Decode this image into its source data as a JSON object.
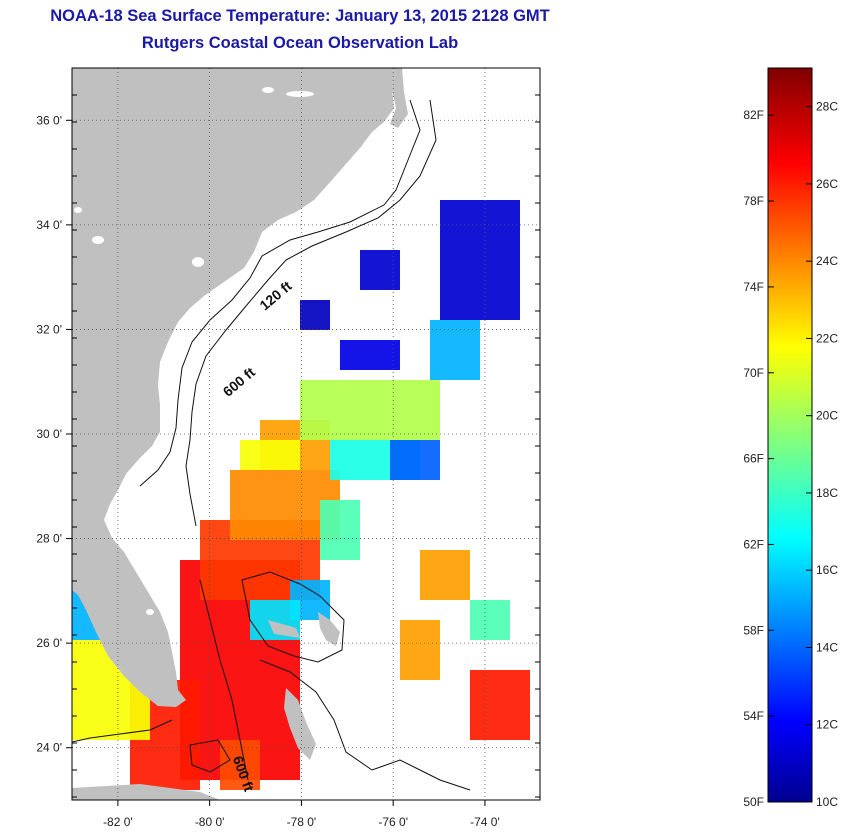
{
  "header": {
    "title": "NOAA-18 Sea Surface Temperature:  January 13, 2015 2128 GMT",
    "subtitle": "Rutgers Coastal Ocean Observation Lab"
  },
  "map": {
    "lon_range": [
      -83.0,
      -72.8
    ],
    "lat_range": [
      23.0,
      37.0
    ],
    "lon_ticks": [
      {
        "value": -82,
        "label": "-82 0'"
      },
      {
        "value": -80,
        "label": "-80 0'"
      },
      {
        "value": -78,
        "label": "-78 0'"
      },
      {
        "value": -76,
        "label": "-76 0'"
      },
      {
        "value": -74,
        "label": "-74 0'"
      }
    ],
    "lat_ticks": [
      {
        "value": 36,
        "label": "36 0'"
      },
      {
        "value": 34,
        "label": "34 0'"
      },
      {
        "value": 32,
        "label": "32 0'"
      },
      {
        "value": 30,
        "label": "30 0'"
      },
      {
        "value": 28,
        "label": "28 0'"
      },
      {
        "value": 26,
        "label": "26 0'"
      },
      {
        "value": 24,
        "label": "24 0'"
      }
    ],
    "isobaths": [
      {
        "label": "120 ft",
        "lon": -78.8,
        "lat": 32.35
      },
      {
        "label": "600 ft",
        "lon": -79.6,
        "lat": 30.7
      },
      {
        "label": "600 ft",
        "lon": -79.5,
        "lat": 23.8
      }
    ],
    "colors": {
      "land": "#c0c0c0",
      "ocean_missing": "#ffffff",
      "grid": "#555555"
    }
  },
  "colorbar": {
    "min_c": 10,
    "max_c": 29,
    "fahrenheit_labels": [
      "82F",
      "78F",
      "74F",
      "70F",
      "66F",
      "62F",
      "58F",
      "54F",
      "50F"
    ],
    "fahrenheit_values": [
      82,
      78,
      74,
      70,
      66,
      62,
      58,
      54,
      50
    ],
    "celsius_labels": [
      "28C",
      "26C",
      "24C",
      "22C",
      "20C",
      "18C",
      "16C",
      "14C",
      "12C",
      "10C"
    ],
    "celsius_values": [
      28,
      26,
      24,
      22,
      20,
      18,
      16,
      14,
      12,
      10
    ]
  }
}
